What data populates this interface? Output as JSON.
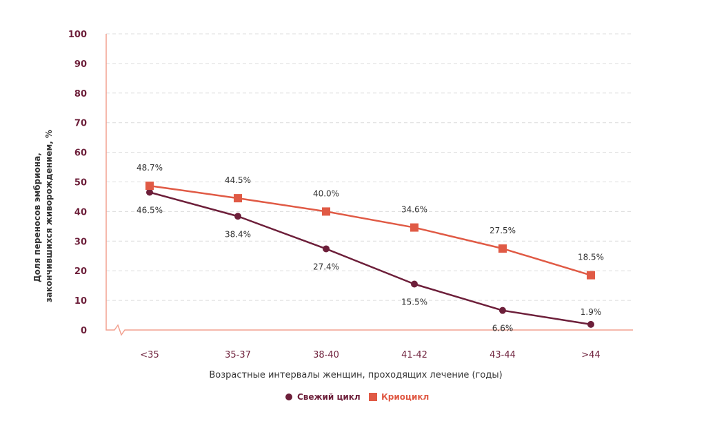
{
  "chart_data": {
    "type": "line",
    "categories": [
      "<35",
      "35-37",
      "38-40",
      "41-42",
      "43-44",
      ">44"
    ],
    "series": [
      {
        "name": "Свежий цикл",
        "values": [
          46.5,
          38.4,
          27.4,
          15.5,
          6.6,
          1.9
        ],
        "labels": [
          "46.5%",
          "38.4%",
          "27.4%",
          "15.5%",
          "6.6%",
          "1.9%"
        ],
        "marker": "circle",
        "color": "#6d1f3a"
      },
      {
        "name": "Криоцикл",
        "values": [
          48.7,
          44.5,
          40.0,
          34.6,
          27.5,
          18.5
        ],
        "labels": [
          "48.7%",
          "44.5%",
          "40.0%",
          "34.6%",
          "27.5%",
          "18.5%"
        ],
        "marker": "square",
        "color": "#e05a45"
      }
    ],
    "yticks": [
      "0",
      "10",
      "20",
      "30",
      "40",
      "50",
      "60",
      "70",
      "80",
      "90",
      "100"
    ],
    "ylim": [
      0,
      100
    ],
    "ylabel_lines": [
      "Доля переносов эмбриона,",
      "закончившихся живорождением, %"
    ],
    "xlabel": "Возрастные интервалы женщин, проходящих лечение (годы)",
    "grid": true,
    "legend_position": "bottom-center",
    "axis_color": "#f2a08f",
    "tick_color": "#6d1f3a",
    "grid_color": "#dcdcdc",
    "text_color": "#333333"
  }
}
